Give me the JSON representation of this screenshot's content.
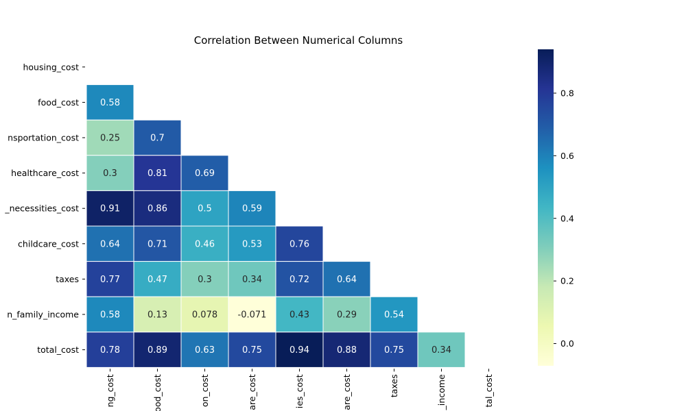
{
  "chart_data": {
    "type": "heatmap",
    "title": "Correlation Between Numerical Columns",
    "row_labels": [
      "housing_cost",
      "food_cost",
      "nsportation_cost",
      "healthcare_cost",
      "_necessities_cost",
      "childcare_cost",
      "taxes",
      "n_family_income",
      "total_cost"
    ],
    "col_labels": [
      "ng_cost",
      "ood_cost",
      "on_cost",
      "are_cost",
      "ies_cost",
      "are_cost",
      "taxes",
      "_income",
      "tal_cost"
    ],
    "cell_labels": [
      [
        null,
        null,
        null,
        null,
        null,
        null,
        null,
        null,
        null
      ],
      [
        "0.58",
        null,
        null,
        null,
        null,
        null,
        null,
        null,
        null
      ],
      [
        "0.25",
        "0.7",
        null,
        null,
        null,
        null,
        null,
        null,
        null
      ],
      [
        "0.3",
        "0.81",
        "0.69",
        null,
        null,
        null,
        null,
        null,
        null
      ],
      [
        "0.91",
        "0.86",
        "0.5",
        "0.59",
        null,
        null,
        null,
        null,
        null
      ],
      [
        "0.64",
        "0.71",
        "0.46",
        "0.53",
        "0.76",
        null,
        null,
        null,
        null
      ],
      [
        "0.77",
        "0.47",
        "0.3",
        "0.34",
        "0.72",
        "0.64",
        null,
        null,
        null
      ],
      [
        "0.58",
        "0.13",
        "0.078",
        "-0.071",
        "0.43",
        "0.29",
        "0.54",
        null,
        null
      ],
      [
        "0.78",
        "0.89",
        "0.63",
        "0.75",
        "0.94",
        "0.88",
        "0.75",
        "0.34",
        null
      ]
    ],
    "colorbar": {
      "range": [
        -0.071,
        0.94
      ],
      "ticks": [
        0.0,
        0.2,
        0.4,
        0.6,
        0.8
      ],
      "tick_labels": [
        "0.0",
        "0.2",
        "0.4",
        "0.6",
        "0.8"
      ],
      "colormap": "YlGnBu"
    },
    "mask": "upper-triangle-including-diagonal",
    "grid": false
  }
}
